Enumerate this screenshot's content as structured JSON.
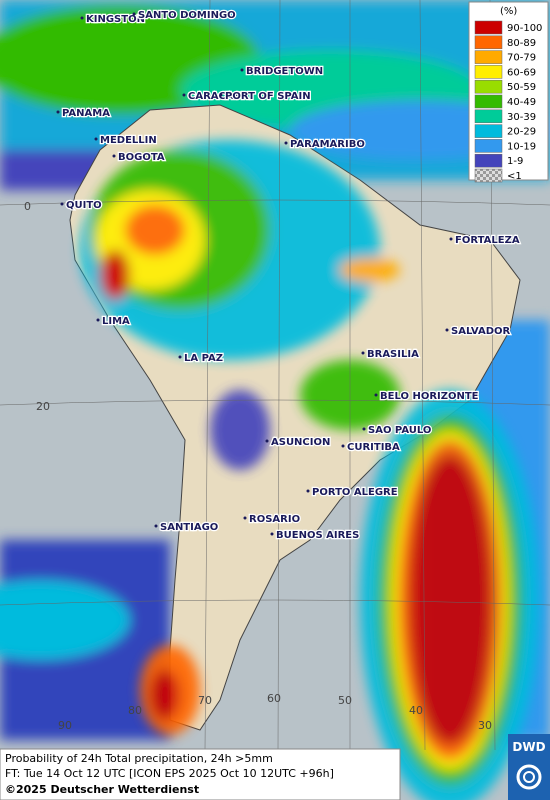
{
  "cities": [
    "KINGSTON",
    "SANTO DOMINGO",
    "BRIDGETOWN",
    "PANAMA",
    "CARACAS",
    "PORT OF SPAIN",
    "MEDELLIN",
    "BOGOTA",
    "PARAMARIBO",
    "QUITO",
    "FORTALEZA",
    "LIMA",
    "SALVADOR",
    "BRASILIA",
    "LA PAZ",
    "BELO HORIZONTE",
    "ASUNCION",
    "SAO PAULO",
    "CURITIBA",
    "PORTO ALEGRE",
    "ROSARIO",
    "BUENOS AIRES",
    "SANTIAGO"
  ],
  "grid_labels": [
    "0",
    "20",
    "90",
    "80",
    "70",
    "60",
    "50",
    "40",
    "30"
  ],
  "legend": {
    "title": "(%)",
    "items": [
      {
        "label": "90-100",
        "color": "#cc0000"
      },
      {
        "label": "80-89",
        "color": "#ff6600"
      },
      {
        "label": "70-79",
        "color": "#ffaa00"
      },
      {
        "label": "60-69",
        "color": "#ffee00"
      },
      {
        "label": "50-59",
        "color": "#99dd00"
      },
      {
        "label": "40-49",
        "color": "#33bb00"
      },
      {
        "label": "30-39",
        "color": "#00cc99"
      },
      {
        "label": "20-29",
        "color": "#00bbdd"
      },
      {
        "label": "10-19",
        "color": "#3399ee"
      },
      {
        "label": "1-9",
        "color": "#4444bb"
      },
      {
        "label": "<1",
        "color": "checker"
      }
    ]
  },
  "footer": [
    "Probability of 24h Total precipitation, 24h >5mm",
    "FT: Tue 14 Oct 12 UTC [ICON EPS 2025 Oct 10 12UTC +96h]",
    "©2025 Deutscher Wetterdienst"
  ],
  "logo": "DWD"
}
